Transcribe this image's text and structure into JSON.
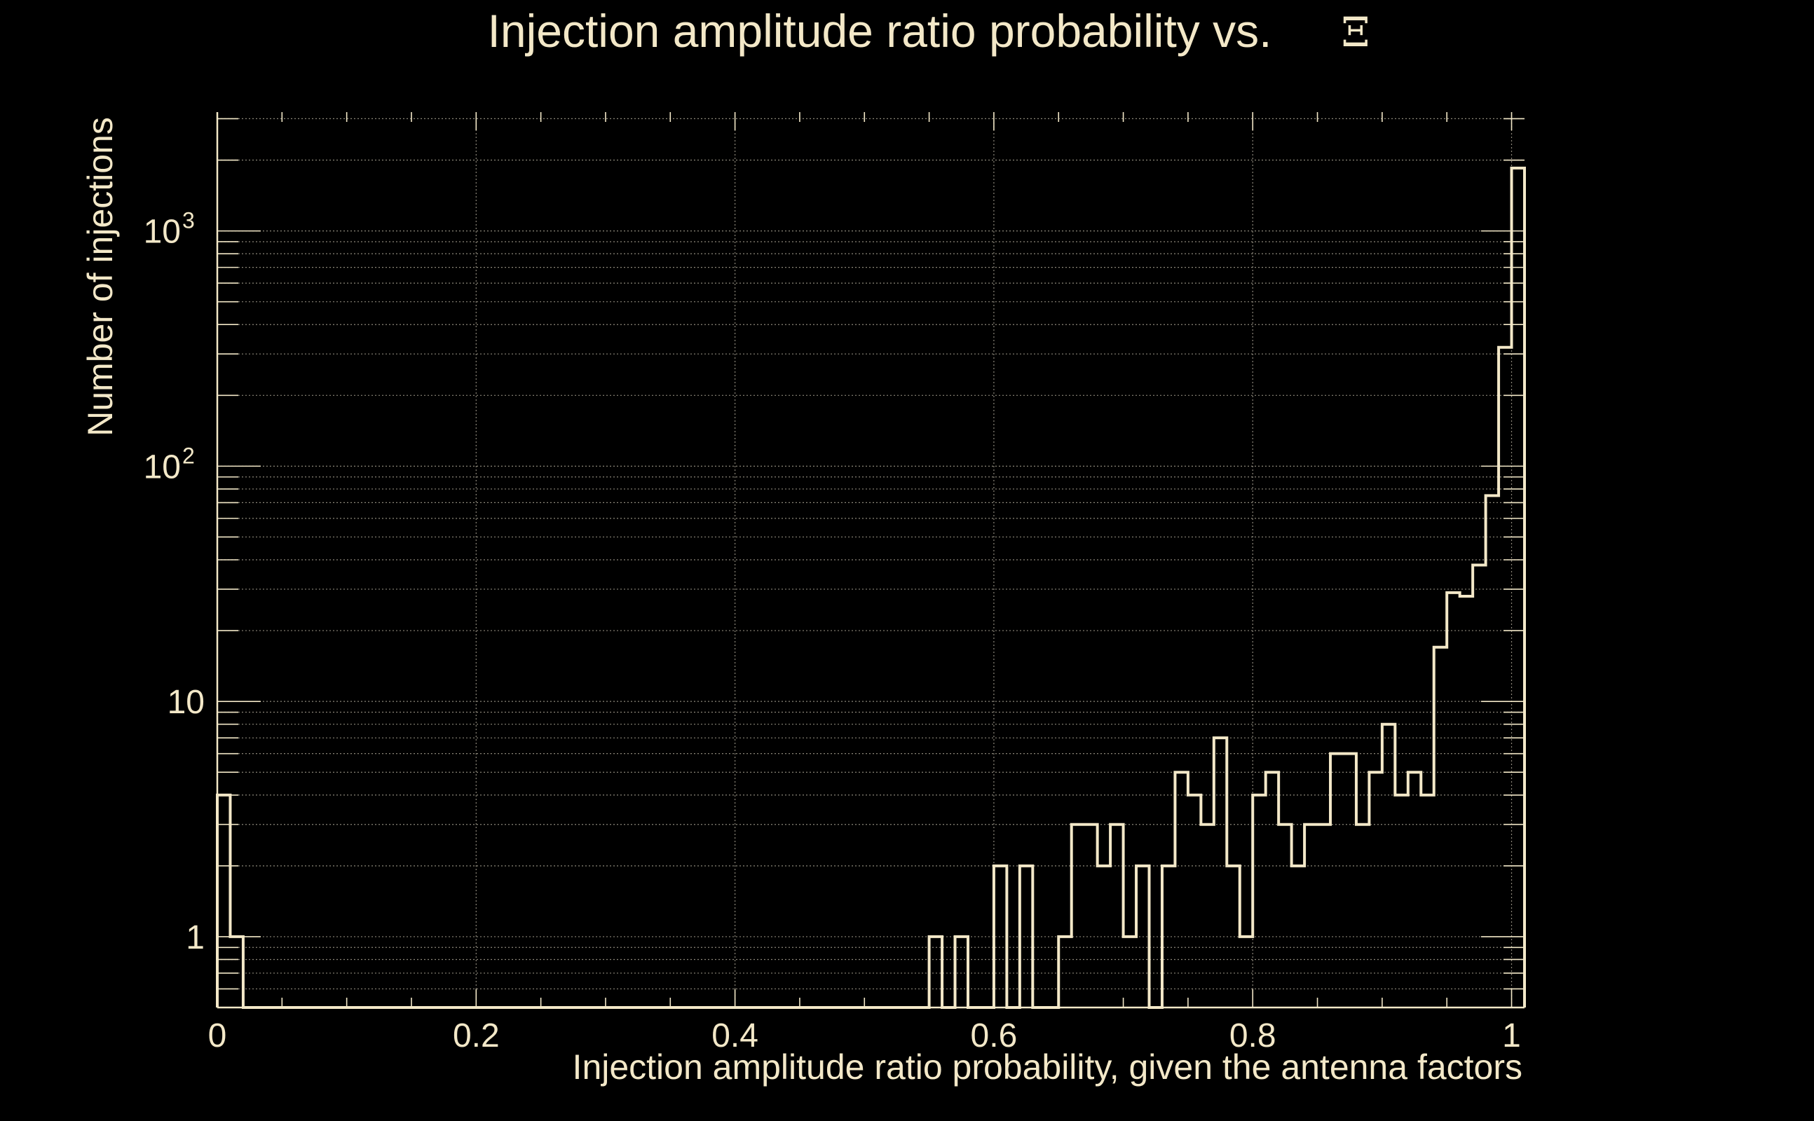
{
  "colors": {
    "background": "#000000",
    "foreground": "#f3e8c8",
    "grid": "#8c877a"
  },
  "chart_data": {
    "type": "histogram",
    "title": "Injection amplitude ratio probability vs.",
    "title_symbol": "Ξ",
    "xlabel": "Injection amplitude ratio probability, given the antenna factors",
    "ylabel": "Number of injections",
    "xlim": [
      0,
      1.01
    ],
    "ylim": [
      0.5,
      3200
    ],
    "yscale": "log",
    "grid": true,
    "xticks": [
      {
        "value": 0,
        "label": "0"
      },
      {
        "value": 0.2,
        "label": "0.2"
      },
      {
        "value": 0.4,
        "label": "0.4"
      },
      {
        "value": 0.6,
        "label": "0.6"
      },
      {
        "value": 0.8,
        "label": "0.8"
      },
      {
        "value": 1,
        "label": "1"
      }
    ],
    "yticks": [
      {
        "value": 1,
        "label": "1",
        "sup": ""
      },
      {
        "value": 10,
        "label": "10",
        "sup": ""
      },
      {
        "value": 100,
        "label": "10",
        "sup": "2"
      },
      {
        "value": 1000,
        "label": "10",
        "sup": "3"
      }
    ],
    "bin_edges": [
      0.0,
      0.01,
      0.02,
      0.03,
      0.04,
      0.05,
      0.06,
      0.07,
      0.08,
      0.09,
      0.1,
      0.11,
      0.12,
      0.13,
      0.14,
      0.15,
      0.16,
      0.17,
      0.18,
      0.19,
      0.2,
      0.21,
      0.22,
      0.23,
      0.24,
      0.25,
      0.26,
      0.27,
      0.28,
      0.29,
      0.3,
      0.31,
      0.32,
      0.33,
      0.34,
      0.35,
      0.36,
      0.37,
      0.38,
      0.39,
      0.4,
      0.41,
      0.42,
      0.43,
      0.44,
      0.45,
      0.46,
      0.47,
      0.48,
      0.49,
      0.5,
      0.51,
      0.52,
      0.53,
      0.54,
      0.55,
      0.56,
      0.57,
      0.58,
      0.59,
      0.6,
      0.61,
      0.62,
      0.63,
      0.64,
      0.65,
      0.66,
      0.67,
      0.68,
      0.69,
      0.7,
      0.71,
      0.72,
      0.73,
      0.74,
      0.75,
      0.76,
      0.77,
      0.78,
      0.79,
      0.8,
      0.81,
      0.82,
      0.83,
      0.84,
      0.85,
      0.86,
      0.87,
      0.88,
      0.89,
      0.9,
      0.91,
      0.92,
      0.93,
      0.94,
      0.95,
      0.96,
      0.97,
      0.98,
      0.99,
      1.0,
      1.01
    ],
    "counts": [
      4,
      1,
      0,
      0,
      0,
      0,
      0,
      0,
      0,
      0,
      0,
      0,
      0,
      0,
      0,
      0,
      0,
      0,
      0,
      0,
      0,
      0,
      0,
      0,
      0,
      0,
      0,
      0,
      0,
      0,
      0,
      0,
      0,
      0,
      0,
      0,
      0,
      0,
      0,
      0,
      0,
      0,
      0,
      0,
      0,
      0,
      0,
      0,
      0,
      0,
      0,
      0,
      0,
      0,
      0,
      1,
      0,
      1,
      0,
      0,
      2,
      0,
      2,
      0,
      0,
      1,
      3,
      3,
      2,
      3,
      1,
      2,
      0,
      2,
      5,
      4,
      3,
      7,
      2,
      1,
      4,
      5,
      3,
      2,
      3,
      3,
      6,
      6,
      3,
      5,
      8,
      4,
      5,
      4,
      17,
      29,
      28,
      38,
      75,
      320,
      1850
    ]
  }
}
